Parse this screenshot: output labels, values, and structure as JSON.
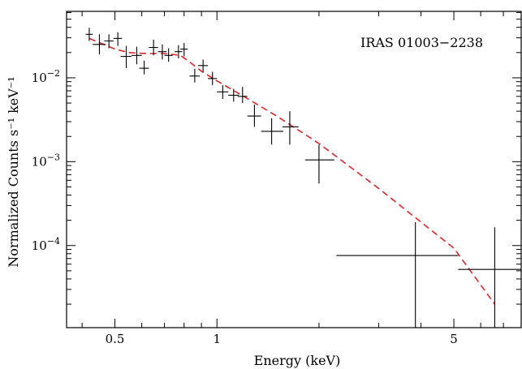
{
  "chart_data": {
    "type": "scatter",
    "title": "",
    "xlabel": "Energy (keV)",
    "ylabel": "Normalized Counts s⁻¹ keV⁻¹",
    "annotation": "IRAS 01003−2238",
    "x_scale": "log",
    "y_scale": "log",
    "xlim": [
      0.36,
      7.9
    ],
    "ylim": [
      1.05e-05,
      0.062
    ],
    "x_tick_labels": [
      {
        "value": 0.5,
        "label": "0.5"
      },
      {
        "value": 1,
        "label": "1"
      },
      {
        "value": 5,
        "label": "5"
      }
    ],
    "y_tick_labels": [
      {
        "value": 0.01,
        "base": "10",
        "exp": "−2"
      },
      {
        "value": 0.001,
        "base": "10",
        "exp": "−3"
      },
      {
        "value": 0.0001,
        "base": "10",
        "exp": "−4"
      }
    ],
    "grid": false,
    "legend": "none",
    "colors": {
      "data": "#000000",
      "model": "#e0262a",
      "axes": "#000000"
    },
    "series": [
      {
        "style": "crosses",
        "points": [
          {
            "x": 0.42,
            "x_lo": 0.41,
            "x_hi": 0.43,
            "y": 0.033,
            "y_lo": 0.0275,
            "y_hi": 0.0395
          },
          {
            "x": 0.45,
            "x_lo": 0.43,
            "x_hi": 0.47,
            "y": 0.025,
            "y_lo": 0.019,
            "y_hi": 0.033
          },
          {
            "x": 0.48,
            "x_lo": 0.465,
            "x_hi": 0.495,
            "y": 0.0275,
            "y_lo": 0.0225,
            "y_hi": 0.033
          },
          {
            "x": 0.51,
            "x_lo": 0.495,
            "x_hi": 0.525,
            "y": 0.0295,
            "y_lo": 0.024,
            "y_hi": 0.035
          },
          {
            "x": 0.54,
            "x_lo": 0.52,
            "x_hi": 0.56,
            "y": 0.018,
            "y_lo": 0.013,
            "y_hi": 0.024
          },
          {
            "x": 0.58,
            "x_lo": 0.56,
            "x_hi": 0.6,
            "y": 0.0185,
            "y_lo": 0.0145,
            "y_hi": 0.0235
          },
          {
            "x": 0.61,
            "x_lo": 0.59,
            "x_hi": 0.63,
            "y": 0.013,
            "y_lo": 0.011,
            "y_hi": 0.016
          },
          {
            "x": 0.65,
            "x_lo": 0.63,
            "x_hi": 0.67,
            "y": 0.023,
            "y_lo": 0.0185,
            "y_hi": 0.0285
          },
          {
            "x": 0.69,
            "x_lo": 0.67,
            "x_hi": 0.71,
            "y": 0.0205,
            "y_lo": 0.0165,
            "y_hi": 0.025
          },
          {
            "x": 0.72,
            "x_lo": 0.7,
            "x_hi": 0.74,
            "y": 0.0185,
            "y_lo": 0.0155,
            "y_hi": 0.0225
          },
          {
            "x": 0.77,
            "x_lo": 0.75,
            "x_hi": 0.79,
            "y": 0.0205,
            "y_lo": 0.017,
            "y_hi": 0.0245
          },
          {
            "x": 0.8,
            "x_lo": 0.78,
            "x_hi": 0.82,
            "y": 0.022,
            "y_lo": 0.018,
            "y_hi": 0.026
          },
          {
            "x": 0.86,
            "x_lo": 0.83,
            "x_hi": 0.89,
            "y": 0.0105,
            "y_lo": 0.0088,
            "y_hi": 0.0128
          },
          {
            "x": 0.91,
            "x_lo": 0.88,
            "x_hi": 0.94,
            "y": 0.014,
            "y_lo": 0.0118,
            "y_hi": 0.0165
          },
          {
            "x": 0.97,
            "x_lo": 0.94,
            "x_hi": 1.0,
            "y": 0.0098,
            "y_lo": 0.0082,
            "y_hi": 0.0118
          },
          {
            "x": 1.04,
            "x_lo": 1.0,
            "x_hi": 1.08,
            "y": 0.0068,
            "y_lo": 0.0056,
            "y_hi": 0.0082
          },
          {
            "x": 1.12,
            "x_lo": 1.08,
            "x_hi": 1.16,
            "y": 0.0062,
            "y_lo": 0.0052,
            "y_hi": 0.0074
          },
          {
            "x": 1.19,
            "x_lo": 1.15,
            "x_hi": 1.23,
            "y": 0.006,
            "y_lo": 0.005,
            "y_hi": 0.0078
          },
          {
            "x": 1.29,
            "x_lo": 1.23,
            "x_hi": 1.35,
            "y": 0.0035,
            "y_lo": 0.0026,
            "y_hi": 0.0048
          },
          {
            "x": 1.45,
            "x_lo": 1.35,
            "x_hi": 1.57,
            "y": 0.0023,
            "y_lo": 0.0016,
            "y_hi": 0.0033
          },
          {
            "x": 1.64,
            "x_lo": 1.56,
            "x_hi": 1.74,
            "y": 0.0026,
            "y_lo": 0.0016,
            "y_hi": 0.004
          },
          {
            "x": 2.0,
            "x_lo": 1.82,
            "x_hi": 2.22,
            "y": 0.00105,
            "y_lo": 0.00055,
            "y_hi": 0.0016
          },
          {
            "x": 3.85,
            "x_lo": 2.25,
            "x_hi": 5.15,
            "y": 7.6e-05,
            "y_lo": 1.05e-05,
            "y_hi": 0.00019
          },
          {
            "x": 6.6,
            "x_lo": 5.15,
            "x_hi": 7.9,
            "y": 5.2e-05,
            "y_lo": 1.05e-05,
            "y_hi": 0.000165
          }
        ]
      },
      {
        "style": "dashed-line",
        "x": [
          0.42,
          0.5,
          0.55,
          0.62,
          0.7,
          0.78,
          0.83,
          0.9,
          1.0,
          1.2,
          1.5,
          2.0,
          3.0,
          4.0,
          5.0,
          6.6
        ],
        "y": [
          0.0295,
          0.022,
          0.02,
          0.0195,
          0.0195,
          0.0185,
          0.0155,
          0.012,
          0.0092,
          0.006,
          0.0035,
          0.00165,
          0.00048,
          0.00019,
          9.3e-05,
          2e-05
        ]
      }
    ]
  }
}
